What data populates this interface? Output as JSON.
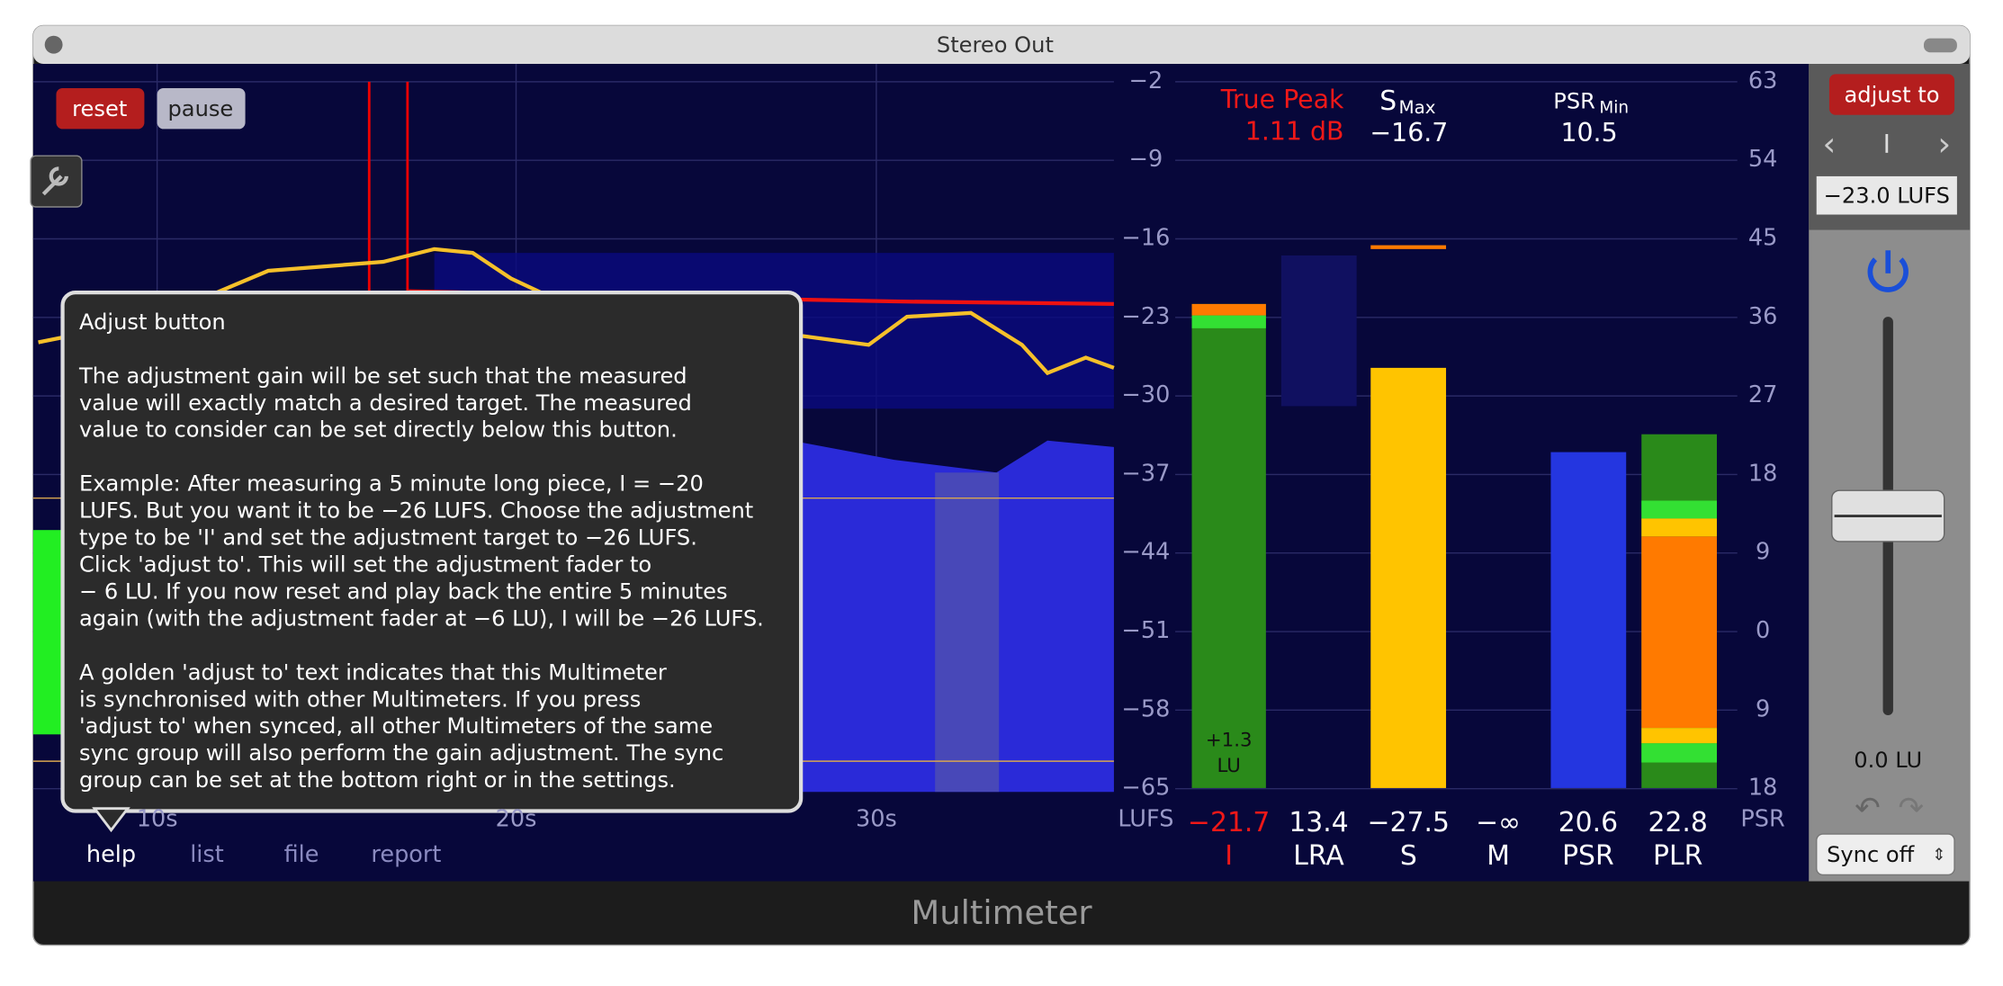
{
  "window": {
    "title": "Stereo Out",
    "footer": "Multimeter"
  },
  "buttons": {
    "reset": "reset",
    "pause": "pause"
  },
  "graph": {
    "x_labels": [
      "10s",
      "20s",
      "30s"
    ]
  },
  "tabs": [
    "help",
    "list",
    "file",
    "report"
  ],
  "tooltip": {
    "title": "Adjust button",
    "paragraphs": [
      [
        "The adjustment gain will be set such that the measured",
        "value will exactly match a desired target. The measured",
        "value to consider can be set directly below this button."
      ],
      [
        "Example: After measuring a 5 minute long piece, I = −20",
        "LUFS. But you want it to be −26 LUFS. Choose the adjustment",
        "type to be 'I' and set the adjustment target to −26 LUFS.",
        "Click 'adjust to'. This will set the adjustment fader to",
        "− 6 LU. If you now reset and play back the entire 5 minutes",
        "again (with the adjustment fader at −6 LU), I will be −26 LUFS."
      ],
      [
        "A golden 'adjust to' text indicates that this Multimeter",
        "is synchronised with other Multimeters. If you press",
        "'adjust to' when synced, all other Multimeters of the same",
        "sync group will also perform the gain adjustment. The sync",
        "group can be set at the bottom right or in the settings."
      ]
    ]
  },
  "scales": {
    "lufs_labels": [
      "−2",
      "−9",
      "−16",
      "−23",
      "−30",
      "−37",
      "−44",
      "−51",
      "−58",
      "−65"
    ],
    "lufs_unit": "LUFS",
    "psr_labels": [
      "63",
      "54",
      "45",
      "36",
      "27",
      "18",
      "9",
      "0",
      "9",
      "18"
    ],
    "psr_unit": "PSR"
  },
  "readouts": {
    "true_peak_label": "True Peak",
    "true_peak_value": "1.11 dB",
    "s_label": "S",
    "s_sub": "Max",
    "s_value": "−16.7",
    "psr_label": "PSR",
    "psr_sub": "Min",
    "psr_value": "10.5"
  },
  "meters": {
    "values": [
      "−21.7",
      "13.4",
      "−27.5",
      "−∞",
      "20.6",
      "22.8"
    ],
    "names": [
      "I",
      "LRA",
      "S",
      "M",
      "PSR",
      "PLR"
    ],
    "bar_note": [
      "+1.3",
      "LU"
    ]
  },
  "side_panel": {
    "adjust_button": "adjust to",
    "mode": "I",
    "target": "−23.0 LUFS",
    "fader_value": "0.0 LU",
    "sync": "Sync off"
  }
}
